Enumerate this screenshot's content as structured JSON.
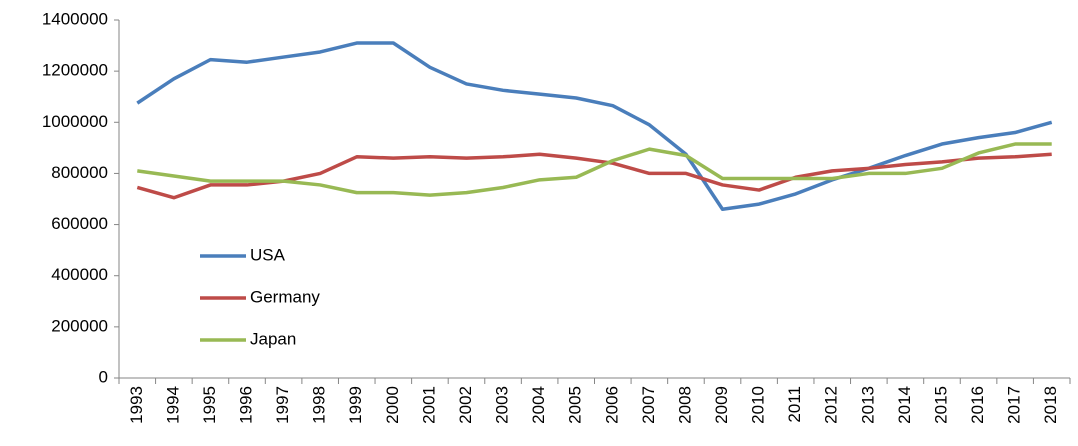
{
  "chart_data": {
    "type": "line",
    "categories": [
      "1993",
      "1994",
      "1995",
      "1996",
      "1997",
      "1998",
      "1999",
      "2000",
      "2001",
      "2002",
      "2003",
      "2004",
      "2005",
      "2006",
      "2007",
      "2008",
      "2009",
      "2010",
      "2011",
      "2012",
      "2013",
      "2014",
      "2015",
      "2016",
      "2017",
      "2018"
    ],
    "series": [
      {
        "name": "USA",
        "color": "#4a7ebb",
        "values": [
          1075000,
          1170000,
          1245000,
          1235000,
          1255000,
          1275000,
          1310000,
          1310000,
          1215000,
          1150000,
          1125000,
          1110000,
          1095000,
          1065000,
          990000,
          875000,
          660000,
          680000,
          720000,
          775000,
          820000,
          870000,
          915000,
          940000,
          960000,
          1000000
        ]
      },
      {
        "name": "Germany",
        "color": "#be4b48",
        "values": [
          745000,
          705000,
          755000,
          755000,
          770000,
          800000,
          865000,
          860000,
          865000,
          860000,
          865000,
          875000,
          860000,
          840000,
          800000,
          800000,
          755000,
          735000,
          785000,
          810000,
          820000,
          835000,
          845000,
          860000,
          865000,
          875000
        ]
      },
      {
        "name": "Japan",
        "color": "#98b954",
        "values": [
          810000,
          790000,
          770000,
          770000,
          770000,
          755000,
          725000,
          725000,
          715000,
          725000,
          745000,
          775000,
          785000,
          850000,
          895000,
          870000,
          780000,
          780000,
          780000,
          780000,
          800000,
          800000,
          820000,
          880000,
          915000,
          915000
        ]
      }
    ],
    "ylim": [
      0,
      1400000
    ],
    "yticks": [
      0,
      200000,
      400000,
      600000,
      800000,
      1000000,
      1200000,
      1400000
    ],
    "grid": false,
    "legend": "left"
  }
}
